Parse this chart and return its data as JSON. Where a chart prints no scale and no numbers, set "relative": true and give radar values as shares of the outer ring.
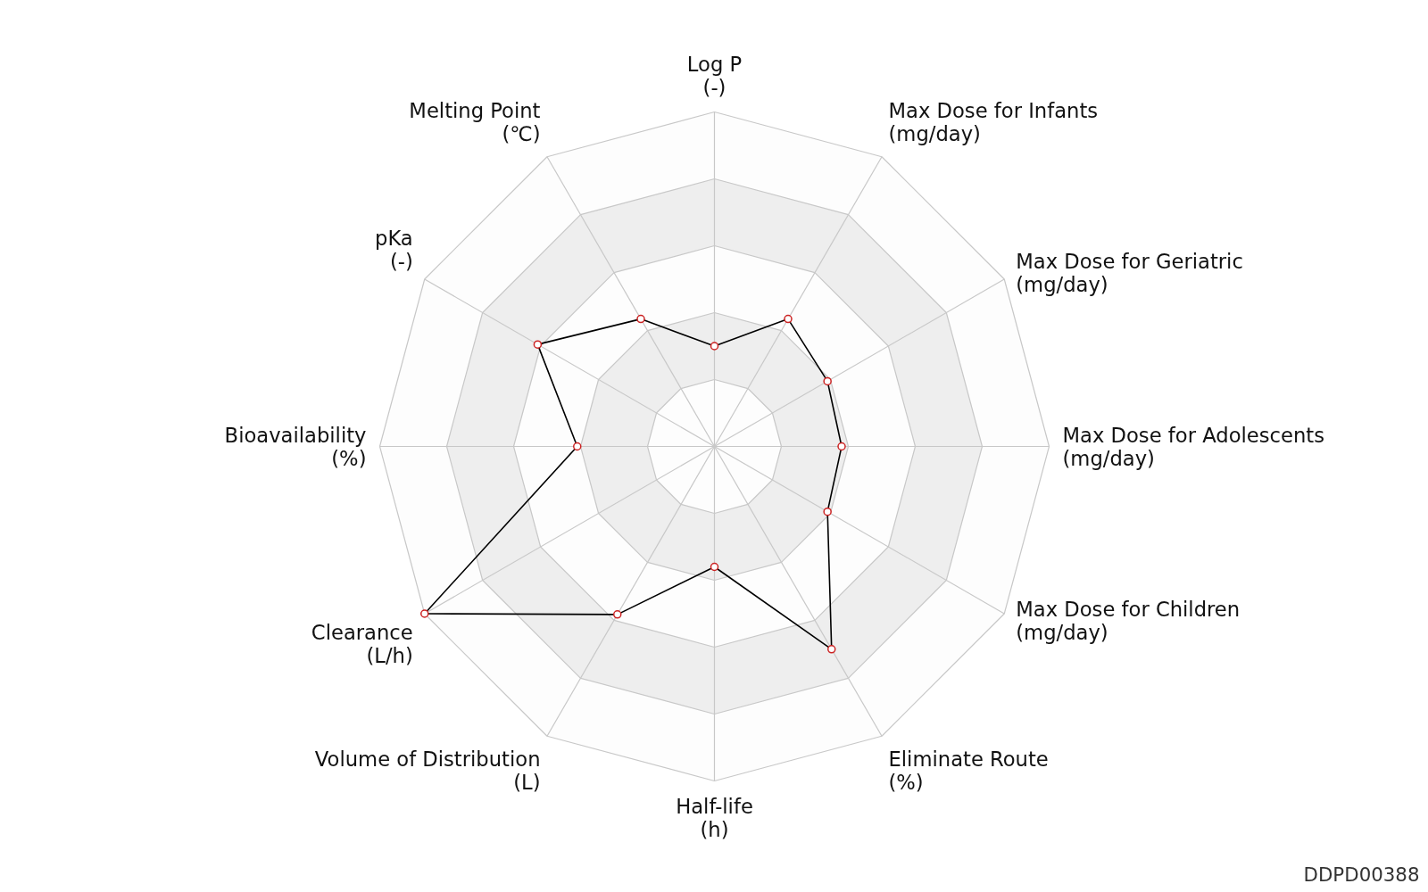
{
  "chart_data": {
    "type": "radar",
    "relative": true,
    "grid": true,
    "marker": "circle",
    "line_style": "solid",
    "categories": [
      "Log P\n(-)",
      "Max Dose for Infants\n(mg/day)",
      "Max Dose for Geriatric\n(mg/day)",
      "Max Dose for Adolescents\n(mg/day)",
      "Max Dose for Children\n(mg/day)",
      "Eliminate Route\n(%)",
      "Half-life\n(h)",
      "Volume of Distribution\n(L)",
      "Clearance\n(L/h)",
      "Bioavailability\n(%)",
      "pKa\n(-)",
      "Melting Point\n(℃)"
    ],
    "series": [
      {
        "color": "#000000",
        "values": [
          0.3,
          0.44,
          0.39,
          0.38,
          0.39,
          0.7,
          0.36,
          0.58,
          1.0,
          0.41,
          0.61,
          0.44
        ]
      }
    ],
    "annotations": [
      "DDPD00388"
    ]
  }
}
